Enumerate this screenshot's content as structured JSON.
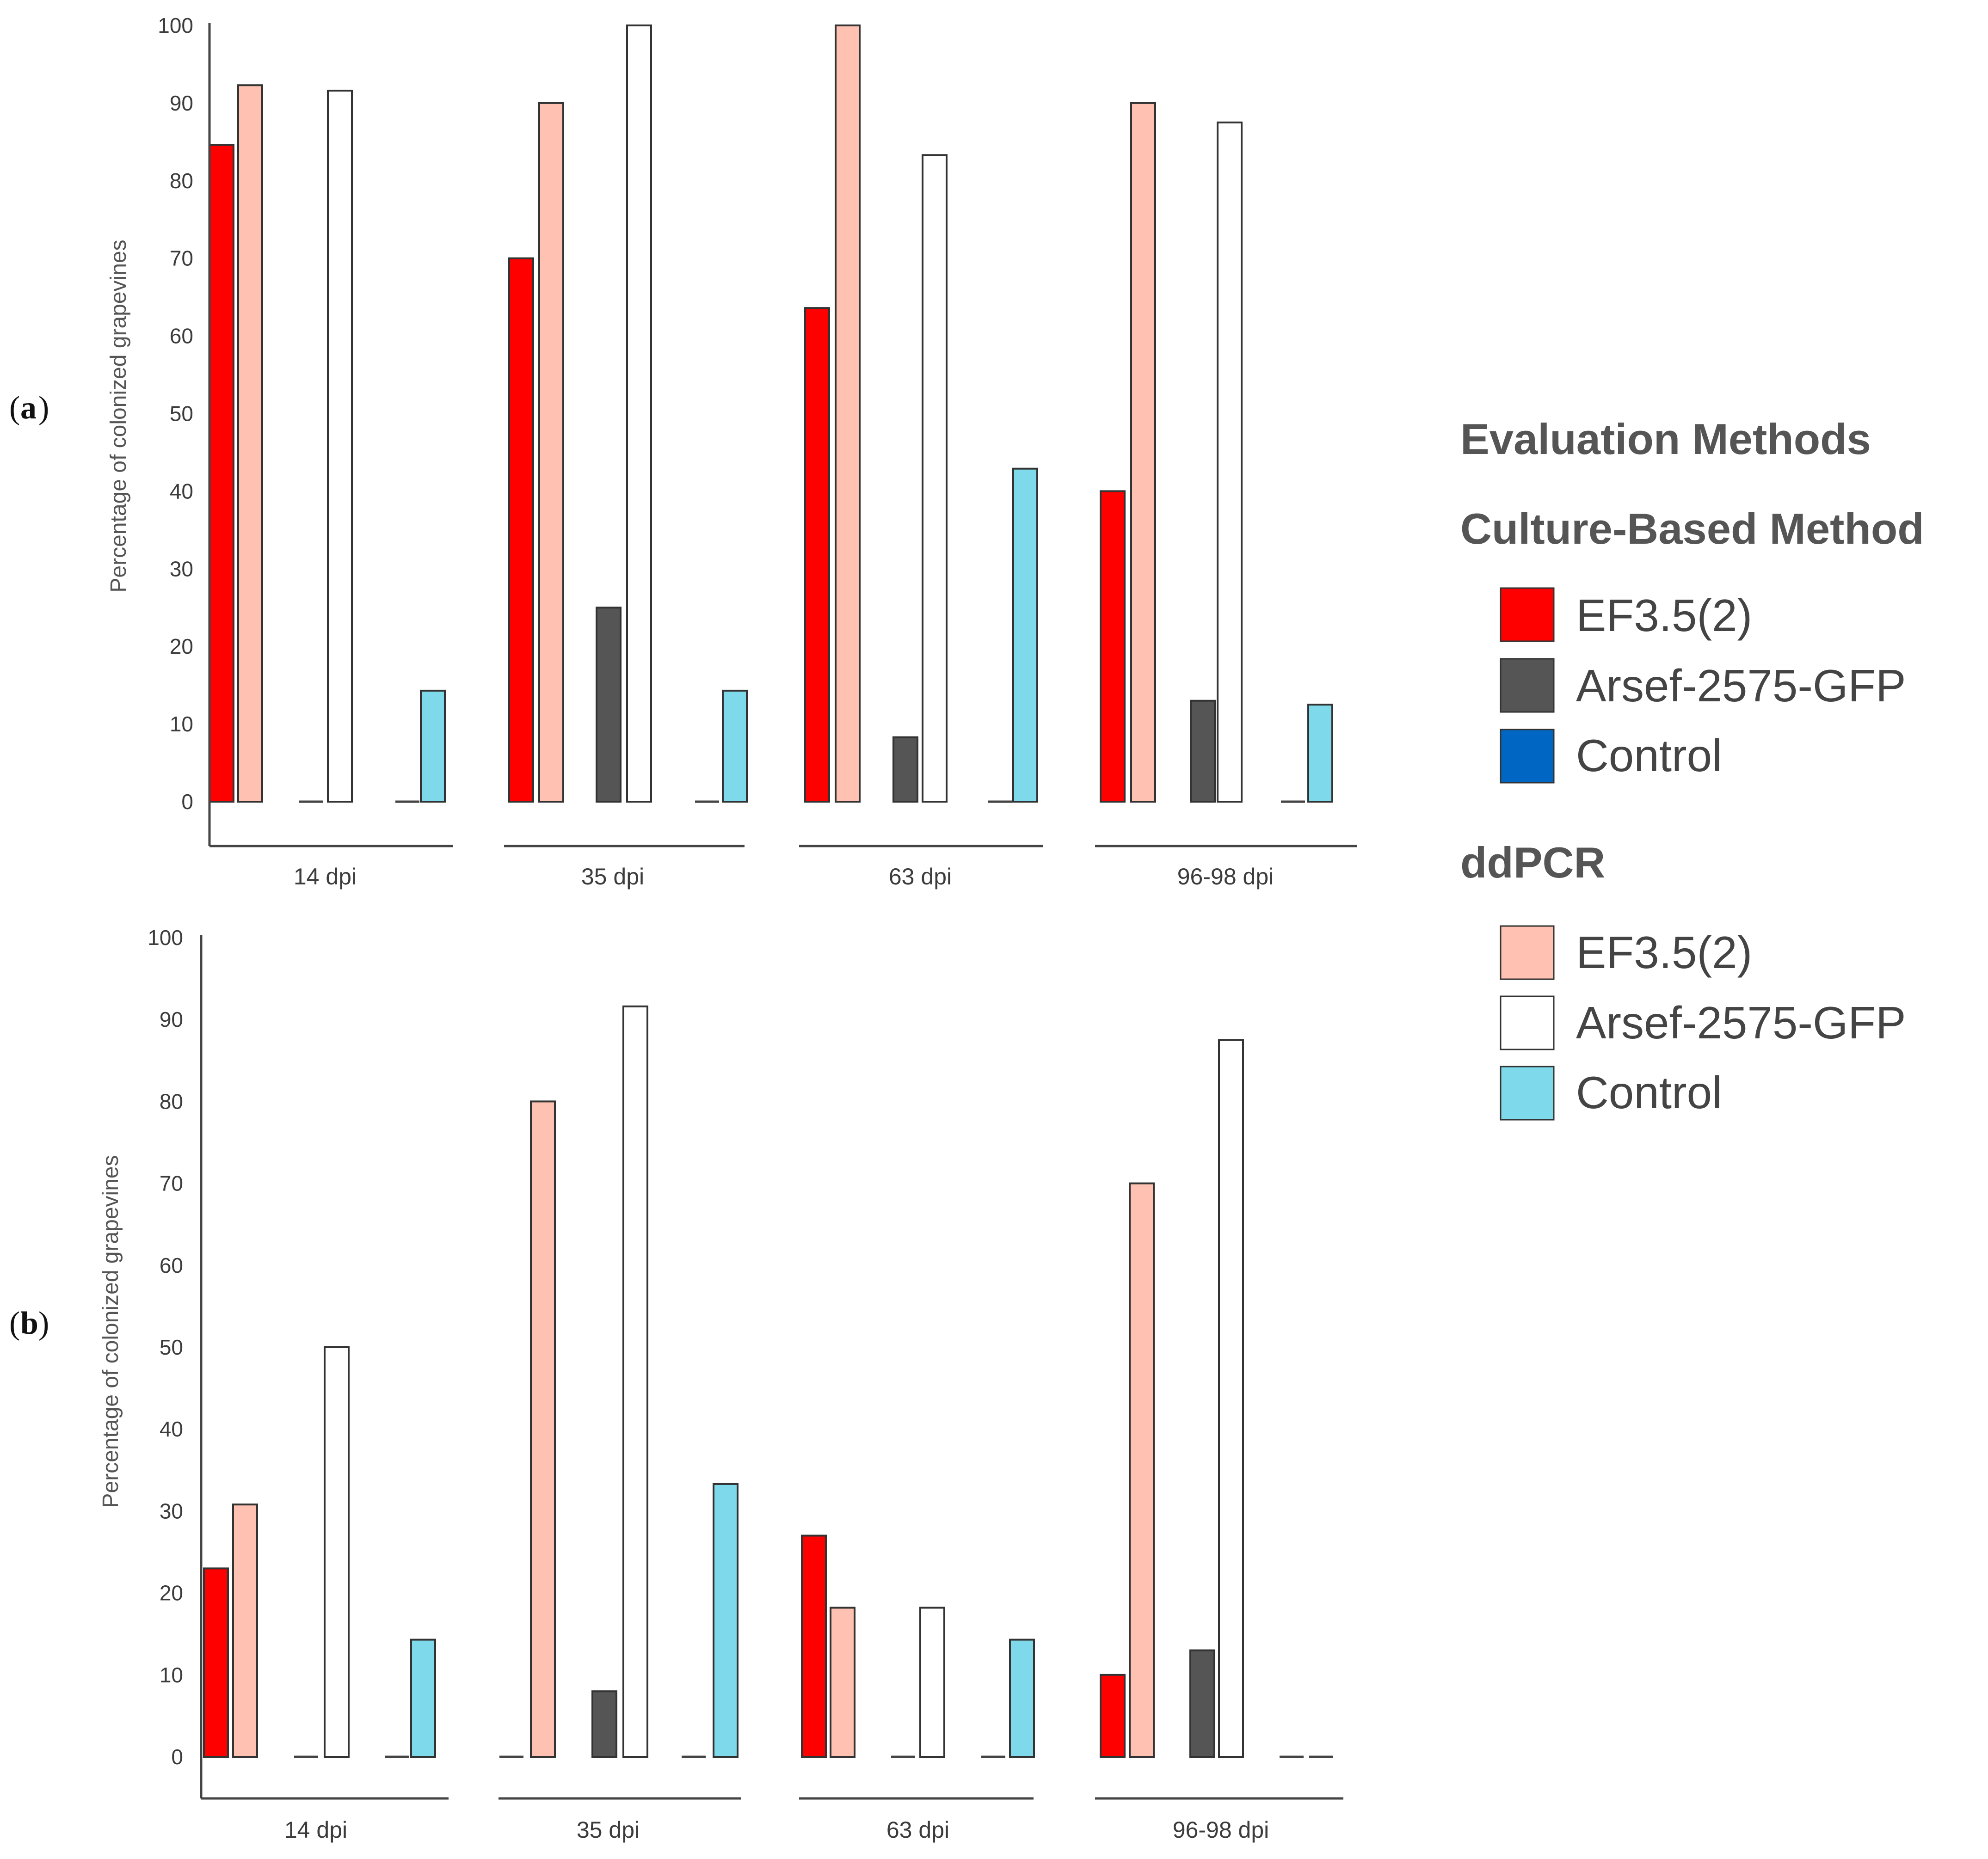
{
  "chart_data": [
    {
      "panel_label": "a",
      "type": "bar",
      "title": "",
      "xlabel": "",
      "ylabel": "Percentage of colonized grapevines",
      "ylim": [
        0,
        100
      ],
      "yticks": [
        0,
        10,
        20,
        30,
        40,
        50,
        60,
        70,
        80,
        90,
        100
      ],
      "categories": [
        "14 dpi",
        "35 dpi",
        "63 dpi",
        "96-98 dpi"
      ],
      "series": [
        {
          "name": "EF3.5(2) Culture-Based Method",
          "values": [
            84.6,
            70,
            63.6,
            40
          ]
        },
        {
          "name": "EF3.5(2) ddPCR",
          "values": [
            92.3,
            90,
            100,
            90
          ]
        },
        {
          "name": "Arsef-2575-GFP Culture-Based Method",
          "values": [
            0,
            25,
            8.3,
            13
          ]
        },
        {
          "name": "Arsef-2575-GFP ddPCR",
          "values": [
            91.6,
            100,
            83.3,
            87.5
          ]
        },
        {
          "name": "Control Culture-Based Method",
          "values": [
            0,
            0,
            0,
            0
          ]
        },
        {
          "name": "Control ddPCR",
          "values": [
            14.3,
            14.3,
            42.9,
            12.5
          ]
        }
      ]
    },
    {
      "panel_label": "b",
      "type": "bar",
      "title": "",
      "xlabel": "",
      "ylabel": "Percentage of colonized grapevines",
      "ylim": [
        0,
        100
      ],
      "yticks": [
        0,
        10,
        20,
        30,
        40,
        50,
        60,
        70,
        80,
        90,
        100
      ],
      "categories": [
        "14 dpi",
        "35 dpi",
        "63 dpi",
        "96-98 dpi"
      ],
      "series": [
        {
          "name": "EF3.5(2) Culture-Based Method",
          "values": [
            23,
            0,
            27,
            10
          ]
        },
        {
          "name": "EF3.5(2) ddPCR",
          "values": [
            30.8,
            80,
            18.2,
            70
          ]
        },
        {
          "name": "Arsef-2575-GFP Culture-Based Method",
          "values": [
            0,
            8,
            0,
            13
          ]
        },
        {
          "name": "Arsef-2575-GFP ddPCR",
          "values": [
            50,
            91.6,
            18.2,
            87.5
          ]
        },
        {
          "name": "Control Culture-Based Method",
          "values": [
            0,
            0,
            0,
            0
          ]
        },
        {
          "name": "Control ddPCR",
          "values": [
            14.3,
            33.3,
            14.3,
            0
          ]
        }
      ]
    }
  ],
  "colors": {
    "ef_culture": "#ff0000",
    "ef_ddpcr": "#ffc2b2",
    "arsef_culture": "#555555",
    "arsef_ddpcr": "#ffffff",
    "control_culture": "#0066c4",
    "control_ddpcr": "#7ed9ea"
  },
  "legend": {
    "title": "Evaluation Methods",
    "groups": [
      {
        "heading": "Culture-Based Method",
        "items": [
          {
            "label": "EF3.5(2)",
            "color": "#ff0000"
          },
          {
            "label": "Arsef-2575-GFP",
            "color": "#555555"
          },
          {
            "label": "Control",
            "color": "#0066c4"
          }
        ]
      },
      {
        "heading": "ddPCR",
        "items": [
          {
            "label": "EF3.5(2)",
            "color": "#ffc2b2"
          },
          {
            "label": "Arsef-2575-GFP",
            "color": "#ffffff"
          },
          {
            "label": "Control",
            "color": "#7ed9ea"
          }
        ]
      }
    ]
  }
}
